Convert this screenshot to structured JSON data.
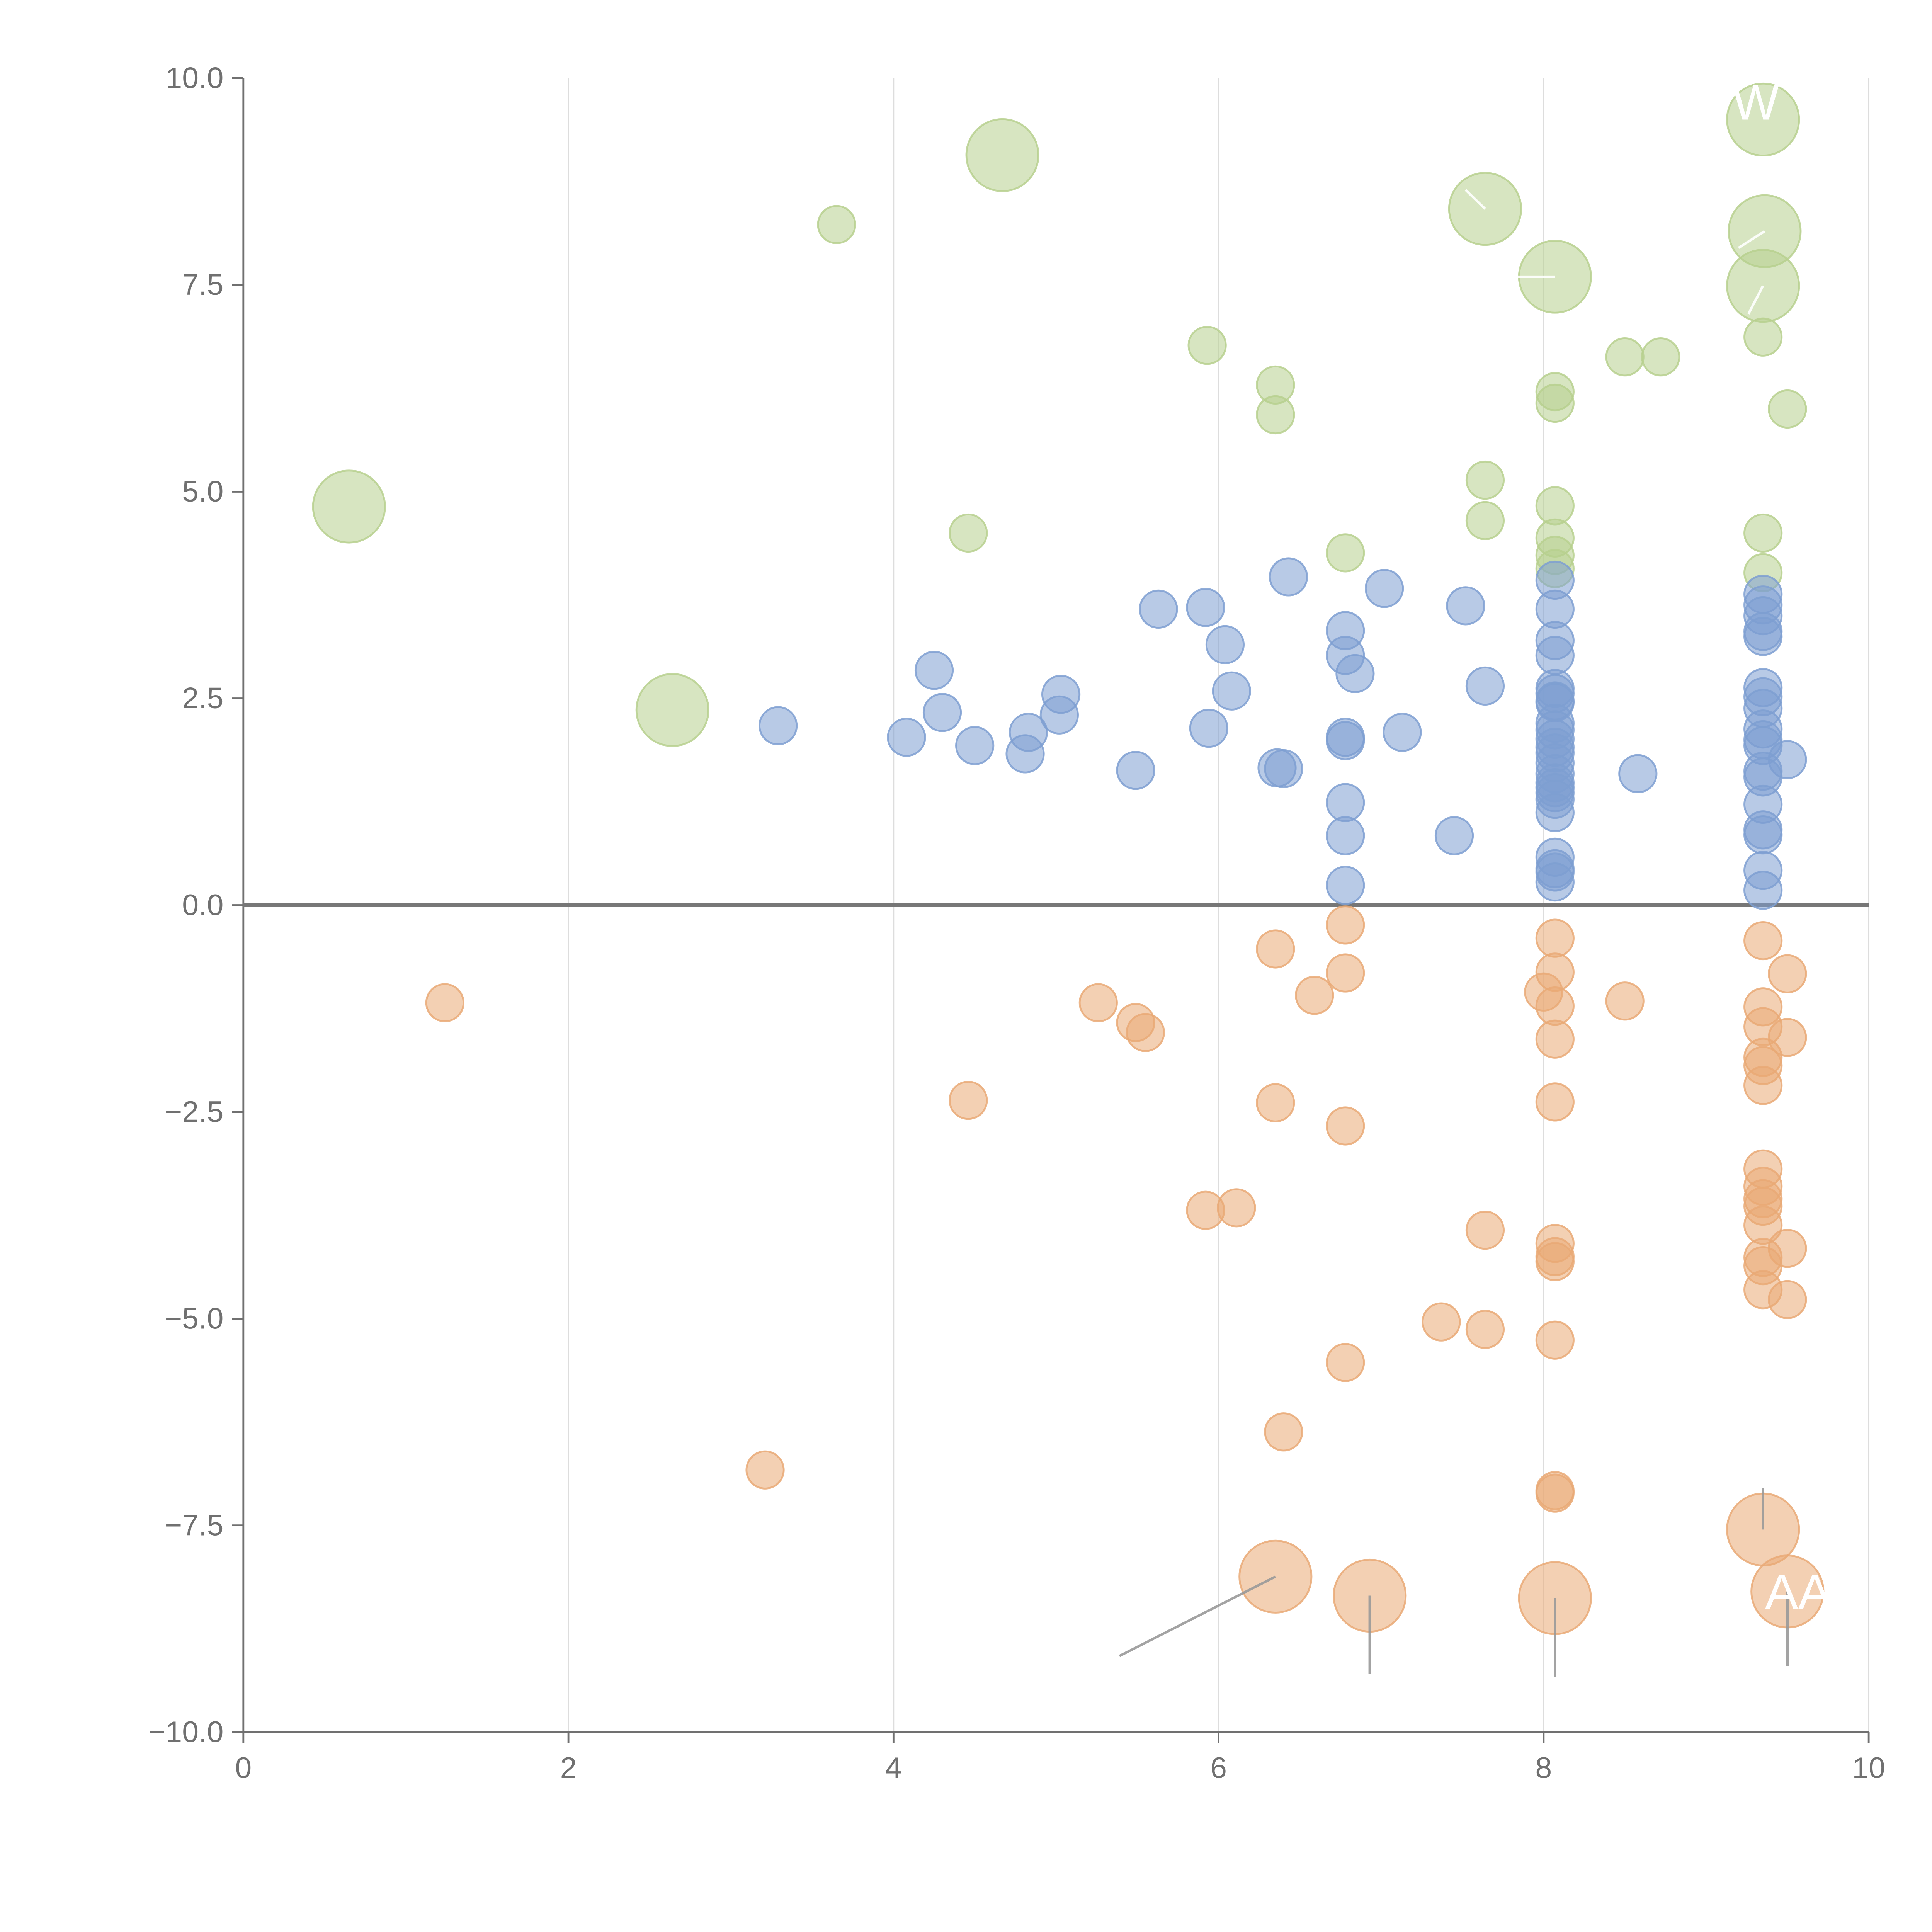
{
  "chart_data": {
    "type": "scatter",
    "title": "",
    "xlabel": "",
    "ylabel": "",
    "xlim": [
      0,
      10
    ],
    "ylim": [
      -10,
      10
    ],
    "grid": "vertical",
    "x_ticks": [
      "0",
      "2",
      "4",
      "6",
      "8",
      "10"
    ],
    "x_tick_values": [
      0,
      2,
      4,
      6,
      8,
      10
    ],
    "y_ticks": [
      "10.0",
      "7.5",
      "5.0",
      "2.5",
      "0.0",
      "−2.5",
      "−5.0",
      "−7.5",
      "−10.0"
    ],
    "y_tick_values": [
      10,
      7.5,
      5,
      2.5,
      0,
      -2.5,
      -5,
      -7.5,
      -10
    ],
    "colors": {
      "green": "#b7d08e",
      "blue": "#7e9fd1",
      "orange": "#e9a975",
      "axis": "#707070",
      "grid": "#dddddd",
      "zero_line": "#777777",
      "label": "#ffffff"
    },
    "series": [
      {
        "name": "green",
        "points": [
          [
            9.35,
            9.5,
            3
          ],
          [
            4.67,
            9.07,
            3
          ],
          [
            3.65,
            8.23,
            1
          ],
          [
            7.64,
            8.42,
            3
          ],
          [
            9.36,
            8.15,
            3
          ],
          [
            8.07,
            7.6,
            3
          ],
          [
            9.35,
            7.49,
            3
          ],
          [
            5.93,
            6.77,
            1
          ],
          [
            9.35,
            6.87,
            1
          ],
          [
            6.35,
            6.29,
            1
          ],
          [
            8.07,
            6.21,
            1
          ],
          [
            8.07,
            6.07,
            1
          ],
          [
            8.5,
            6.63,
            1
          ],
          [
            8.72,
            6.63,
            1
          ],
          [
            9.5,
            6.0,
            1
          ],
          [
            6.35,
            5.93,
            1
          ],
          [
            7.64,
            5.14,
            1
          ],
          [
            0.65,
            4.82,
            3
          ],
          [
            8.07,
            4.83,
            1
          ],
          [
            7.64,
            4.65,
            1
          ],
          [
            4.46,
            4.5,
            1
          ],
          [
            9.35,
            4.5,
            1
          ],
          [
            8.07,
            4.44,
            1
          ],
          [
            6.78,
            4.26,
            1
          ],
          [
            8.07,
            4.23,
            1
          ],
          [
            8.07,
            4.07,
            1
          ],
          [
            9.35,
            4.02,
            1
          ],
          [
            2.64,
            2.36,
            3
          ]
        ]
      },
      {
        "name": "blue",
        "points": [
          [
            6.43,
            3.97,
            1
          ],
          [
            8.07,
            3.93,
            1
          ],
          [
            7.02,
            3.83,
            1
          ],
          [
            9.35,
            3.76,
            1
          ],
          [
            9.35,
            3.63,
            1
          ],
          [
            5.63,
            3.58,
            1
          ],
          [
            5.92,
            3.6,
            1
          ],
          [
            7.52,
            3.62,
            1
          ],
          [
            8.07,
            3.58,
            1
          ],
          [
            9.35,
            3.5,
            1
          ],
          [
            9.35,
            3.31,
            1
          ],
          [
            6.78,
            3.32,
            1
          ],
          [
            9.35,
            3.25,
            1
          ],
          [
            8.07,
            3.2,
            1
          ],
          [
            6.04,
            3.15,
            1
          ],
          [
            8.07,
            3.02,
            1
          ],
          [
            6.78,
            3.02,
            1
          ],
          [
            4.25,
            2.84,
            1
          ],
          [
            6.84,
            2.8,
            1
          ],
          [
            7.64,
            2.65,
            1
          ],
          [
            9.35,
            2.63,
            1
          ],
          [
            8.07,
            2.62,
            1
          ],
          [
            8.07,
            2.56,
            1
          ],
          [
            6.08,
            2.59,
            1
          ],
          [
            5.03,
            2.55,
            1
          ],
          [
            9.35,
            2.52,
            1
          ],
          [
            8.07,
            2.47,
            1
          ],
          [
            8.07,
            2.45,
            1
          ],
          [
            9.35,
            2.38,
            1
          ],
          [
            4.3,
            2.33,
            1
          ],
          [
            5.02,
            2.3,
            1
          ],
          [
            8.07,
            2.2,
            1
          ],
          [
            3.29,
            2.17,
            1
          ],
          [
            5.94,
            2.14,
            1
          ],
          [
            8.07,
            2.12,
            1
          ],
          [
            9.35,
            2.13,
            1
          ],
          [
            4.83,
            2.09,
            1
          ],
          [
            7.13,
            2.09,
            1
          ],
          [
            4.08,
            2.03,
            1
          ],
          [
            6.78,
            2.03,
            1
          ],
          [
            8.07,
            2.01,
            1
          ],
          [
            9.35,
            2.0,
            1
          ],
          [
            6.78,
            1.99,
            1
          ],
          [
            9.35,
            1.93,
            1
          ],
          [
            4.5,
            1.93,
            1
          ],
          [
            8.07,
            1.91,
            1
          ],
          [
            8.07,
            1.84,
            1
          ],
          [
            4.81,
            1.83,
            1
          ],
          [
            9.5,
            1.76,
            1
          ],
          [
            8.07,
            1.72,
            1
          ],
          [
            6.36,
            1.66,
            1
          ],
          [
            6.4,
            1.65,
            1
          ],
          [
            5.49,
            1.63,
            1
          ],
          [
            8.58,
            1.59,
            1
          ],
          [
            8.07,
            1.59,
            1
          ],
          [
            9.35,
            1.62,
            1
          ],
          [
            9.35,
            1.55,
            1
          ],
          [
            8.07,
            1.48,
            1
          ],
          [
            8.07,
            1.42,
            1
          ],
          [
            8.07,
            1.36,
            1
          ],
          [
            8.07,
            1.28,
            1
          ],
          [
            6.78,
            1.24,
            1
          ],
          [
            9.35,
            1.22,
            1
          ],
          [
            8.07,
            1.12,
            1
          ],
          [
            9.35,
            0.91,
            1
          ],
          [
            7.45,
            0.84,
            1
          ],
          [
            6.78,
            0.84,
            1
          ],
          [
            9.35,
            0.85,
            1
          ],
          [
            8.07,
            0.58,
            1
          ],
          [
            8.07,
            0.44,
            1
          ],
          [
            8.07,
            0.4,
            1
          ],
          [
            9.35,
            0.42,
            1
          ],
          [
            8.07,
            0.28,
            1
          ],
          [
            6.78,
            0.24,
            1
          ],
          [
            9.35,
            0.18,
            1
          ]
        ]
      },
      {
        "name": "orange",
        "points": [
          [
            6.78,
            -0.24,
            1
          ],
          [
            8.07,
            -0.4,
            1
          ],
          [
            9.35,
            -0.43,
            1
          ],
          [
            6.35,
            -0.53,
            1
          ],
          [
            6.78,
            -0.82,
            1
          ],
          [
            8.07,
            -0.81,
            1
          ],
          [
            9.5,
            -0.83,
            1
          ],
          [
            8.0,
            -1.05,
            1
          ],
          [
            6.59,
            -1.09,
            1
          ],
          [
            1.24,
            -1.18,
            1
          ],
          [
            5.26,
            -1.18,
            1
          ],
          [
            8.5,
            -1.16,
            1
          ],
          [
            8.07,
            -1.22,
            1
          ],
          [
            9.35,
            -1.23,
            1
          ],
          [
            5.49,
            -1.42,
            1
          ],
          [
            9.35,
            -1.47,
            1
          ],
          [
            5.55,
            -1.54,
            1
          ],
          [
            9.5,
            -1.6,
            1
          ],
          [
            8.07,
            -1.62,
            1
          ],
          [
            9.35,
            -1.84,
            1
          ],
          [
            9.35,
            -1.94,
            1
          ],
          [
            9.35,
            -2.18,
            1
          ],
          [
            4.46,
            -2.36,
            1
          ],
          [
            6.35,
            -2.39,
            1
          ],
          [
            8.07,
            -2.38,
            1
          ],
          [
            6.78,
            -2.67,
            1
          ],
          [
            9.35,
            -3.19,
            1
          ],
          [
            9.35,
            -3.4,
            1
          ],
          [
            9.35,
            -3.55,
            1
          ],
          [
            9.35,
            -3.64,
            1
          ],
          [
            5.92,
            -3.69,
            1
          ],
          [
            6.11,
            -3.66,
            1
          ],
          [
            9.35,
            -3.87,
            1
          ],
          [
            7.64,
            -3.93,
            1
          ],
          [
            8.07,
            -4.09,
            1
          ],
          [
            9.5,
            -4.15,
            1
          ],
          [
            8.07,
            -4.25,
            1
          ],
          [
            9.35,
            -4.26,
            1
          ],
          [
            8.07,
            -4.31,
            1
          ],
          [
            9.35,
            -4.36,
            1
          ],
          [
            9.35,
            -4.65,
            1
          ],
          [
            9.5,
            -4.77,
            1
          ],
          [
            7.37,
            -5.04,
            1
          ],
          [
            7.64,
            -5.13,
            1
          ],
          [
            8.07,
            -5.26,
            1
          ],
          [
            6.78,
            -5.53,
            1
          ],
          [
            6.4,
            -6.37,
            1
          ],
          [
            3.21,
            -6.83,
            1
          ],
          [
            8.07,
            -7.08,
            1
          ],
          [
            8.07,
            -7.11,
            1
          ],
          [
            9.35,
            -7.55,
            3
          ],
          [
            6.35,
            -8.12,
            3
          ],
          [
            6.93,
            -8.35,
            3
          ],
          [
            8.07,
            -8.38,
            3
          ],
          [
            9.5,
            -8.3,
            3
          ]
        ]
      }
    ],
    "annotations": [
      {
        "id": "w",
        "text": "W",
        "series": "green",
        "x": 9.35,
        "y": 9.5
      },
      {
        "id": "aa",
        "text": "AA",
        "series": "orange",
        "x": 9.5,
        "y": -8.3
      }
    ]
  }
}
